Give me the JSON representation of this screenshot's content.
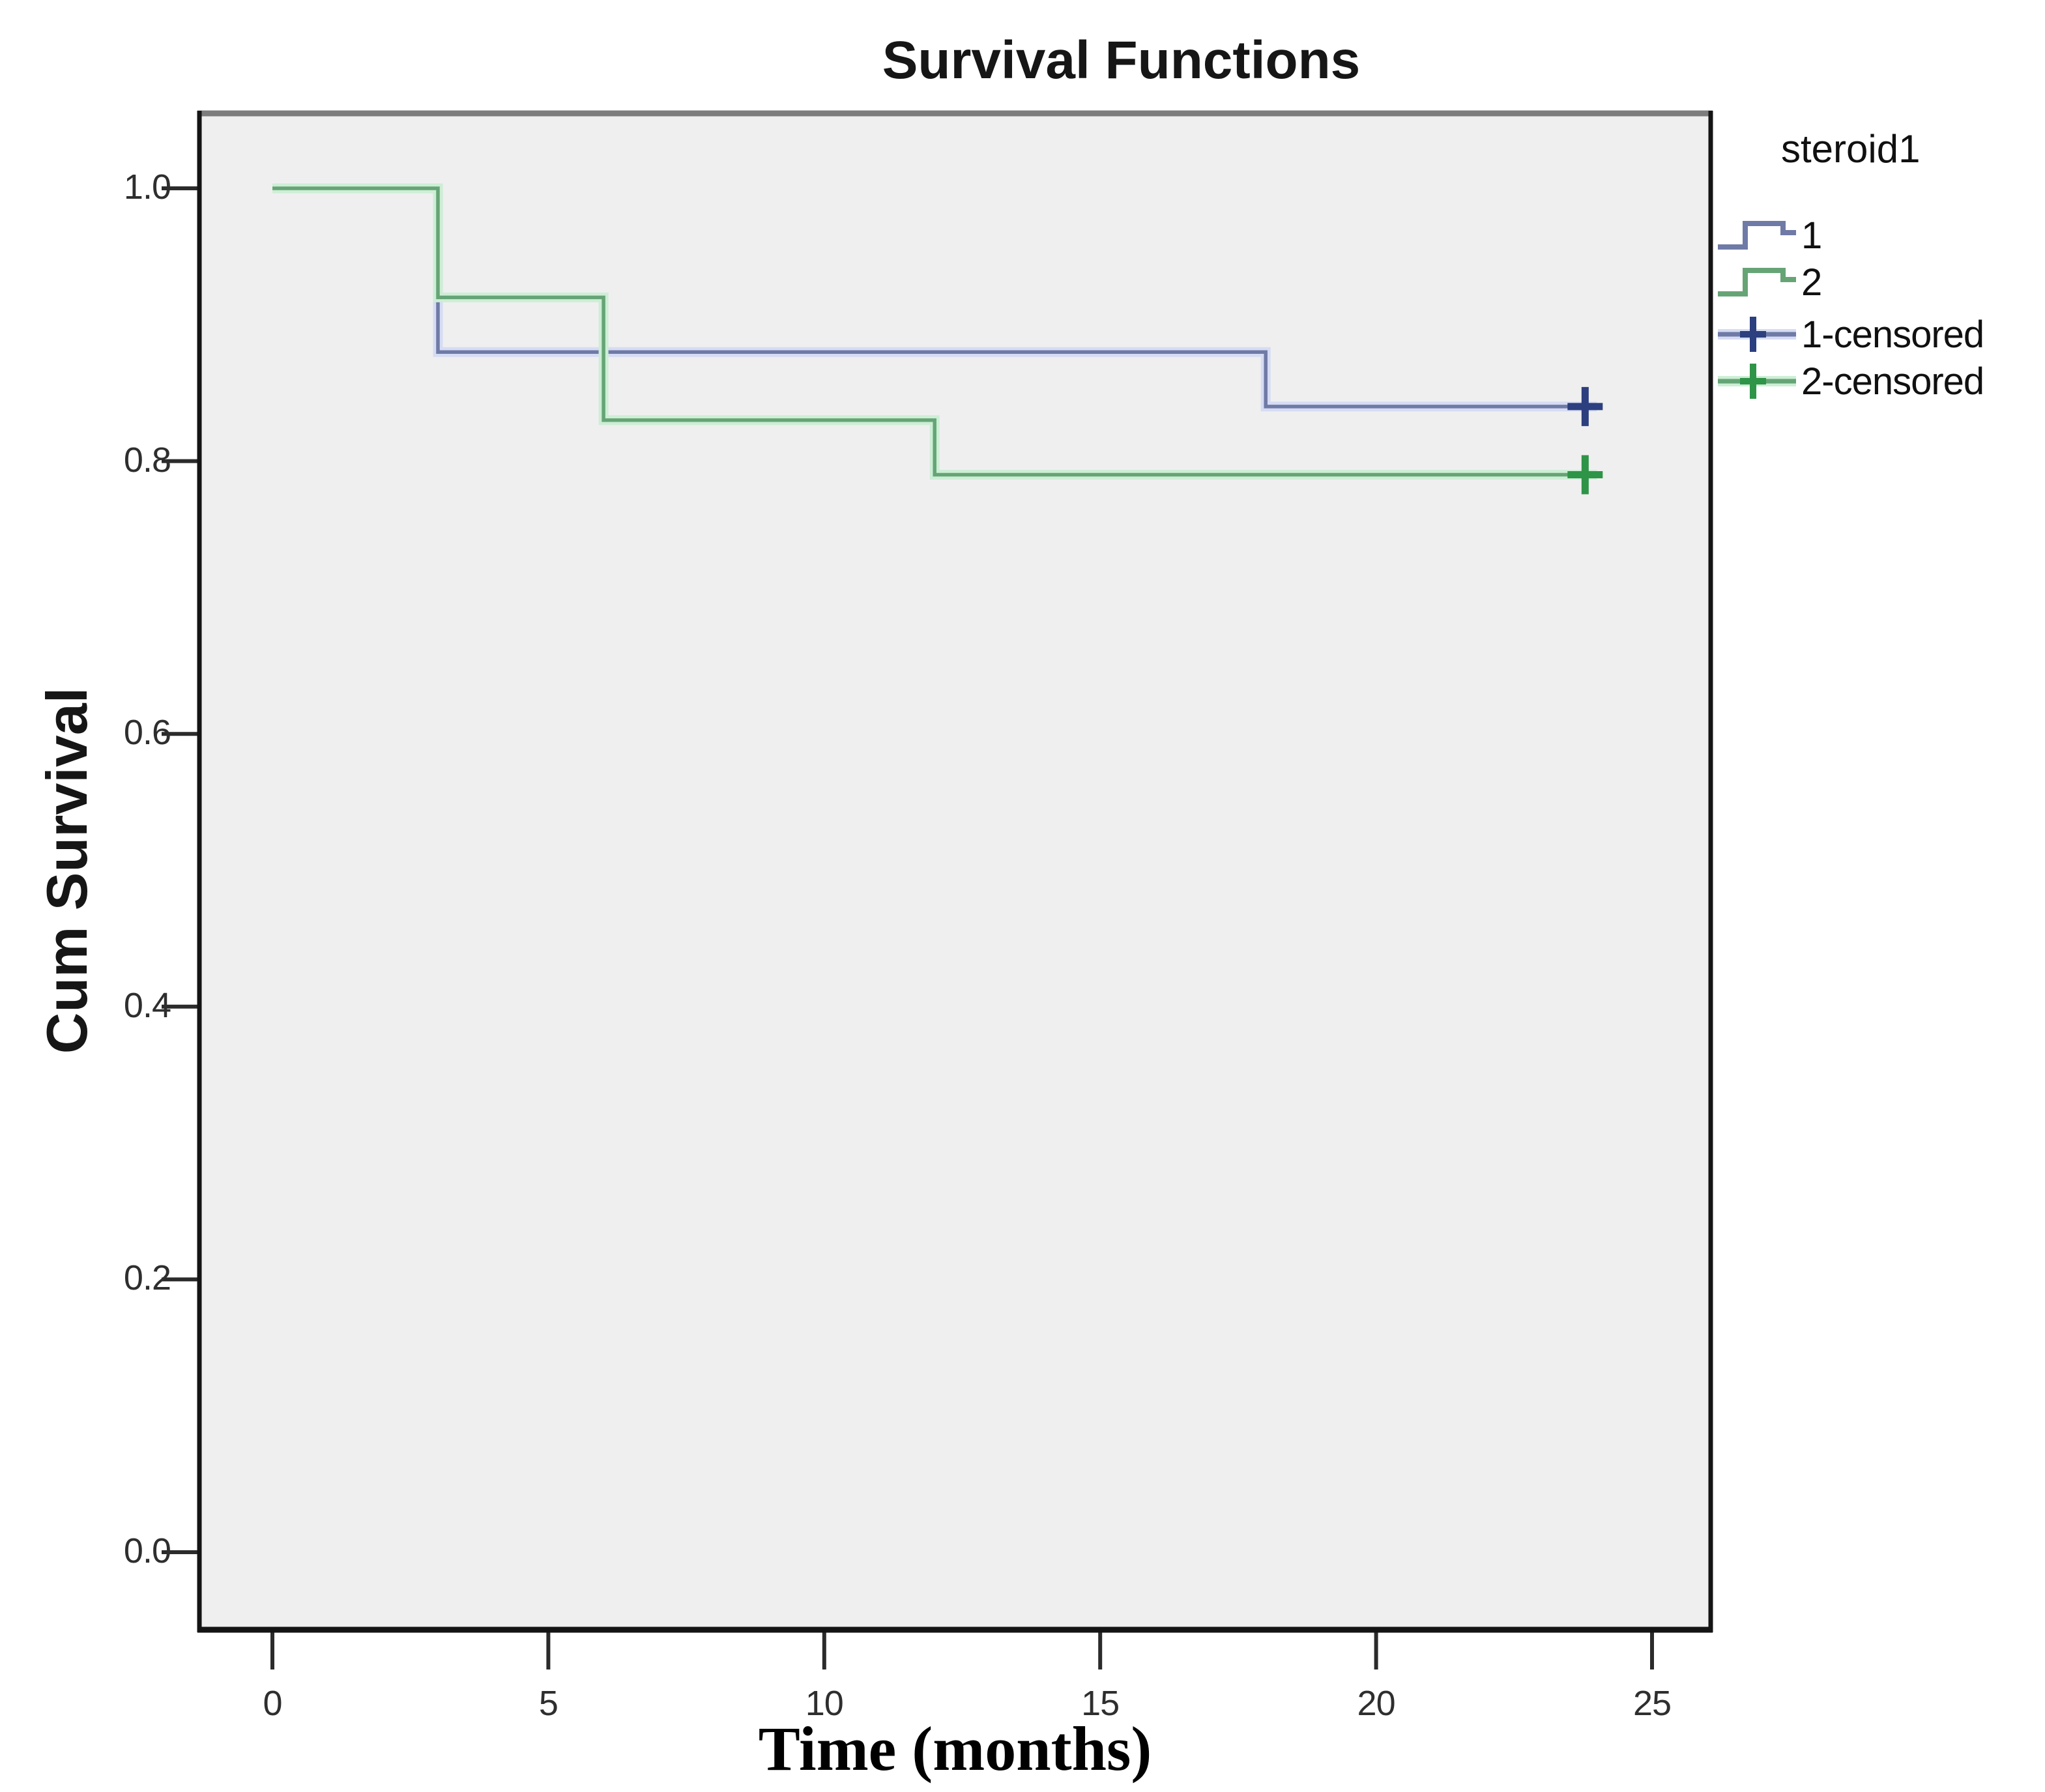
{
  "title": "Survival Functions",
  "legend": {
    "title": "steroid1",
    "entries": [
      {
        "label": "1",
        "series": "1",
        "kind": "step"
      },
      {
        "label": "2",
        "series": "2",
        "kind": "step"
      },
      {
        "label": "1-censored",
        "series": "1",
        "kind": "censored"
      },
      {
        "label": "2-censored",
        "series": "2",
        "kind": "censored"
      }
    ]
  },
  "axes": {
    "x": {
      "label": "Time (months)",
      "ticks": [
        {
          "v": 0,
          "label": "0"
        },
        {
          "v": 5,
          "label": "5"
        },
        {
          "v": 10,
          "label": "10"
        },
        {
          "v": 15,
          "label": "15"
        },
        {
          "v": 20,
          "label": "20"
        },
        {
          "v": 25,
          "label": "25"
        }
      ]
    },
    "y": {
      "label": "Cum Survival",
      "ticks": [
        {
          "v": 0.0,
          "label": "0.0"
        },
        {
          "v": 0.2,
          "label": "0.2"
        },
        {
          "v": 0.4,
          "label": "0.4"
        },
        {
          "v": 0.6,
          "label": "0.6"
        },
        {
          "v": 0.8,
          "label": "0.8"
        },
        {
          "v": 1.0,
          "label": "1.0"
        }
      ]
    }
  },
  "colors": {
    "plot_bg": "#efeff0",
    "border": "#141414",
    "border_top": "#7d7d7d",
    "tick": "#2b2b2b",
    "series": {
      "1": {
        "line": "#6f7aa6",
        "halo": "#d6dcf3",
        "censor": "#2c3f7e"
      },
      "2": {
        "line": "#66a476",
        "halo": "#cdeed5",
        "censor": "#2e9447"
      }
    }
  },
  "chart_data": {
    "type": "line",
    "subtype": "kaplan-meier-step",
    "title": "Survival Functions",
    "xlabel": "Time (months)",
    "ylabel": "Cum Survival",
    "xticks": [
      0,
      5,
      10,
      15,
      20,
      25
    ],
    "yticks": [
      0.0,
      0.2,
      0.4,
      0.6,
      0.8,
      1.0
    ],
    "xlim": [
      -1.4,
      26.1
    ],
    "ylim": [
      -0.06,
      1.06
    ],
    "grid": false,
    "legend_title": "steroid1",
    "legend_position": "right",
    "series": [
      {
        "name": "1",
        "points": [
          [
            0,
            1.0
          ],
          [
            3,
            1.0
          ],
          [
            3,
            0.88
          ],
          [
            18,
            0.88
          ],
          [
            18,
            0.84
          ],
          [
            24,
            0.84
          ]
        ],
        "censored": [
          [
            24,
            0.84
          ]
        ]
      },
      {
        "name": "2",
        "points": [
          [
            0,
            1.0
          ],
          [
            3,
            1.0
          ],
          [
            3,
            0.92
          ],
          [
            6,
            0.92
          ],
          [
            6,
            0.83
          ],
          [
            12,
            0.83
          ],
          [
            12,
            0.79
          ],
          [
            24,
            0.79
          ]
        ],
        "censored": [
          [
            24,
            0.79
          ]
        ]
      }
    ]
  }
}
